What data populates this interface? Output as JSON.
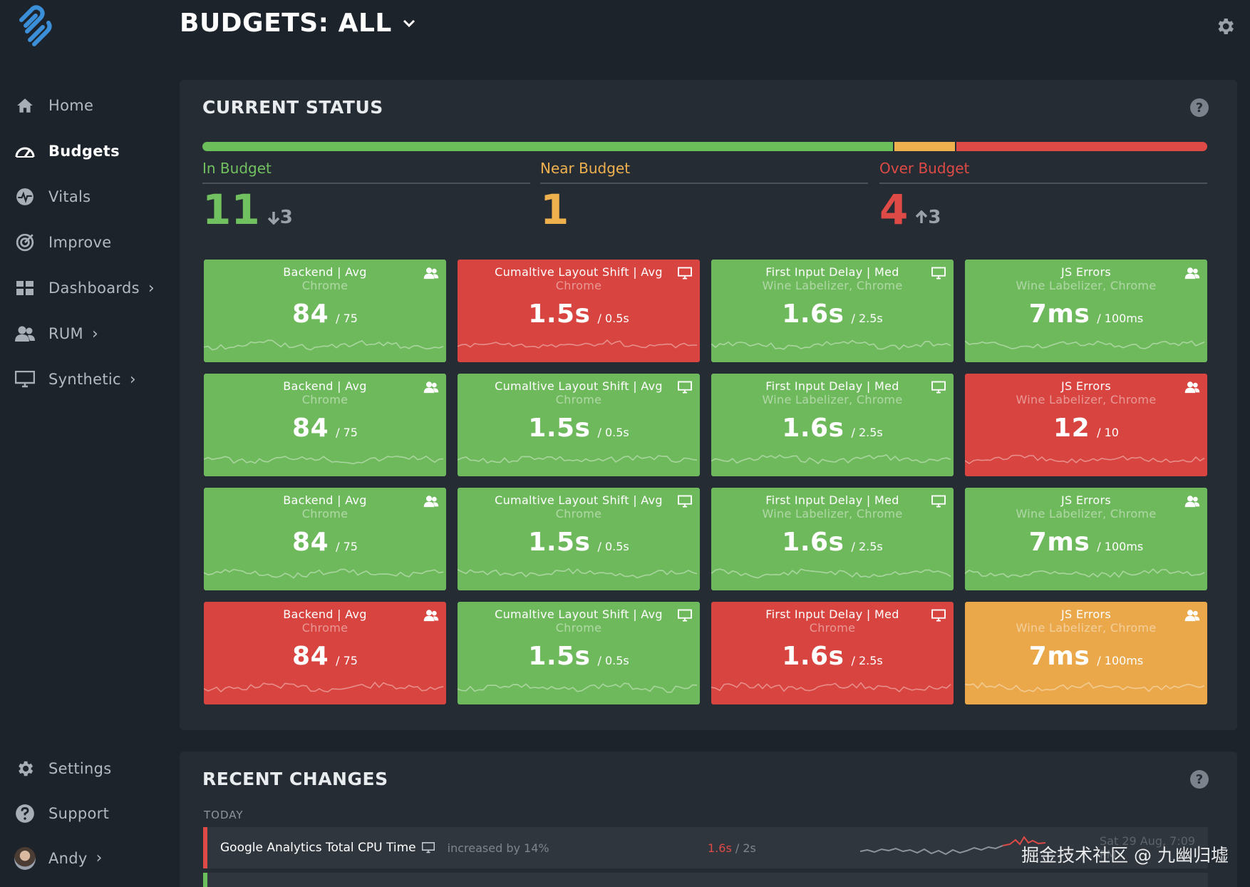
{
  "header": {
    "title": "BUDGETS: ALL"
  },
  "sidebar": {
    "items": [
      {
        "label": "Home",
        "icon": "home-icon"
      },
      {
        "label": "Budgets",
        "icon": "speedometer-icon",
        "active": true
      },
      {
        "label": "Vitals",
        "icon": "pulse-icon"
      },
      {
        "label": "Improve",
        "icon": "target-icon"
      },
      {
        "label": "Dashboards",
        "icon": "dashboard-icon",
        "chevron": true
      },
      {
        "label": "RUM",
        "icon": "users-icon",
        "chevron": true
      },
      {
        "label": "Synthetic",
        "icon": "monitor-icon",
        "chevron": true
      }
    ],
    "bottom": [
      {
        "label": "Settings",
        "icon": "gear-icon"
      },
      {
        "label": "Support",
        "icon": "help-icon"
      },
      {
        "label": "Andy",
        "icon": "avatar",
        "chevron": true
      }
    ]
  },
  "current_status": {
    "title": "CURRENT STATUS",
    "bar": {
      "in": 11,
      "near": 1,
      "over": 4
    },
    "in_budget": {
      "label": "In Budget",
      "count": "11",
      "delta": "3"
    },
    "near_budget": {
      "label": "Near Budget",
      "count": "1"
    },
    "over_budget": {
      "label": "Over Budget",
      "count": "4",
      "delta": "3"
    },
    "colors": {
      "green": "#6fb95d",
      "red": "#d8443f",
      "amber": "#eaa84a"
    },
    "tiles": [
      {
        "title": "Backend | Avg",
        "sub": "Chrome",
        "value": "84",
        "budget": "/ 75",
        "status": "green",
        "icon": "users-icon"
      },
      {
        "title": "Cumaltive Layout Shift | Avg",
        "sub": "Chrome",
        "value": "1.5s",
        "budget": "/ 0.5s",
        "status": "red",
        "icon": "monitor-icon"
      },
      {
        "title": "First Input Delay | Med",
        "sub": "Wine Labelizer, Chrome",
        "value": "1.6s",
        "budget": "/ 2.5s",
        "status": "green",
        "icon": "monitor-icon"
      },
      {
        "title": "JS Errors",
        "sub": "Wine Labelizer, Chrome",
        "value": "7ms",
        "budget": "/ 100ms",
        "status": "green",
        "icon": "users-icon"
      },
      {
        "title": "Backend | Avg",
        "sub": "Chrome",
        "value": "84",
        "budget": "/ 75",
        "status": "green",
        "icon": "users-icon"
      },
      {
        "title": "Cumaltive Layout Shift | Avg",
        "sub": "Chrome",
        "value": "1.5s",
        "budget": "/ 0.5s",
        "status": "green",
        "icon": "monitor-icon"
      },
      {
        "title": "First Input Delay | Med",
        "sub": "Wine Labelizer, Chrome",
        "value": "1.6s",
        "budget": "/ 2.5s",
        "status": "green",
        "icon": "monitor-icon"
      },
      {
        "title": "JS Errors",
        "sub": "Wine Labelizer, Chrome",
        "value": "12",
        "budget": "/ 10",
        "status": "red",
        "icon": "users-icon"
      },
      {
        "title": "Backend | Avg",
        "sub": "Chrome",
        "value": "84",
        "budget": "/ 75",
        "status": "green",
        "icon": "users-icon"
      },
      {
        "title": "Cumaltive Layout Shift | Avg",
        "sub": "Chrome",
        "value": "1.5s",
        "budget": "/ 0.5s",
        "status": "green",
        "icon": "monitor-icon"
      },
      {
        "title": "First Input Delay | Med",
        "sub": "Wine Labelizer, Chrome",
        "value": "1.6s",
        "budget": "/ 2.5s",
        "status": "green",
        "icon": "monitor-icon"
      },
      {
        "title": "JS Errors",
        "sub": "Wine Labelizer, Chrome",
        "value": "7ms",
        "budget": "/ 100ms",
        "status": "green",
        "icon": "users-icon"
      },
      {
        "title": "Backend | Avg",
        "sub": "Chrome",
        "value": "84",
        "budget": "/ 75",
        "status": "red",
        "icon": "users-icon"
      },
      {
        "title": "Cumaltive Layout Shift | Avg",
        "sub": "Chrome",
        "value": "1.5s",
        "budget": "/ 0.5s",
        "status": "green",
        "icon": "monitor-icon"
      },
      {
        "title": "First Input Delay | Med",
        "sub": "Chrome",
        "value": "1.6s",
        "budget": "/ 2.5s",
        "status": "red",
        "icon": "monitor-icon"
      },
      {
        "title": "JS Errors",
        "sub": "Wine Labelizer, Chrome",
        "value": "7ms",
        "budget": "/ 100ms",
        "status": "amber",
        "icon": "users-icon"
      }
    ]
  },
  "recent_changes": {
    "title": "RECENT CHANGES",
    "group": "TODAY",
    "rows": [
      {
        "name": "Google Analytics Total CPU Time",
        "desc": "increased by 14%",
        "current": "1.6s",
        "budget": "/ 2s",
        "when": "Sat 29 Aug, 7:09 PM",
        "status": "red"
      }
    ]
  },
  "watermark": "掘金技术社区 @ 九幽归墟"
}
